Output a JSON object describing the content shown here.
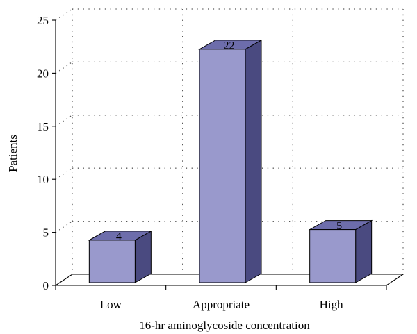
{
  "chart_data": {
    "type": "bar",
    "categories": [
      "Low",
      "Appropriate",
      "High"
    ],
    "values": [
      4,
      22,
      5
    ],
    "data_labels": [
      "4",
      "22",
      "5"
    ],
    "xlabel": "16-hr aminoglycoside concentration",
    "ylabel": "Patients",
    "ylim": [
      0,
      25
    ],
    "yticks": [
      "0",
      "5",
      "10",
      "15",
      "20",
      "25"
    ],
    "grid": "dotted horizontal and vertical back-wall gridlines",
    "legend": "none",
    "style": "3d-column",
    "colors": {
      "bar_front": "#9999cc",
      "bar_top": "#6d6dab",
      "bar_side": "#4a4a80",
      "bar_outline": "#000000",
      "grid": "#555555",
      "axis": "#000000"
    }
  }
}
